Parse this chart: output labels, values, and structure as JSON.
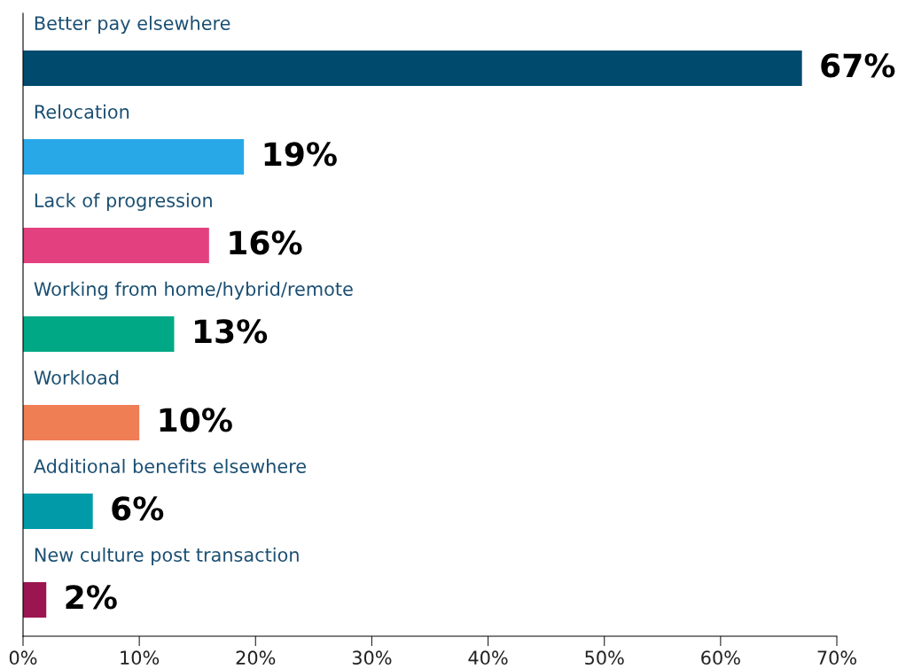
{
  "chart_data": {
    "type": "bar",
    "orientation": "horizontal",
    "categories": [
      "Better pay elsewhere",
      "Relocation",
      "Lack of progression",
      "Working from home/hybrid/remote",
      "Workload",
      "Additional benefits elsewhere",
      "New culture post transaction"
    ],
    "values": [
      67,
      19,
      16,
      13,
      10,
      6,
      2
    ],
    "colors": [
      "#004a6e",
      "#29a8e8",
      "#e3407f",
      "#00a885",
      "#f07e55",
      "#009aa8",
      "#9b1650"
    ],
    "value_labels": [
      "67%",
      "19%",
      "16%",
      "13%",
      "10%",
      "6%",
      "2%"
    ],
    "xlim": [
      0,
      70
    ],
    "xticks": [
      {
        "value": 0,
        "label": "0%"
      },
      {
        "value": 10,
        "label": "10%"
      },
      {
        "value": 20,
        "label": "20%"
      },
      {
        "value": 30,
        "label": "30%"
      },
      {
        "value": 40,
        "label": "40%"
      },
      {
        "value": 50,
        "label": "50%"
      },
      {
        "value": 60,
        "label": "60%"
      },
      {
        "value": 70,
        "label": "70%"
      }
    ],
    "tick_labels": "x",
    "grid": false,
    "legend": false
  }
}
